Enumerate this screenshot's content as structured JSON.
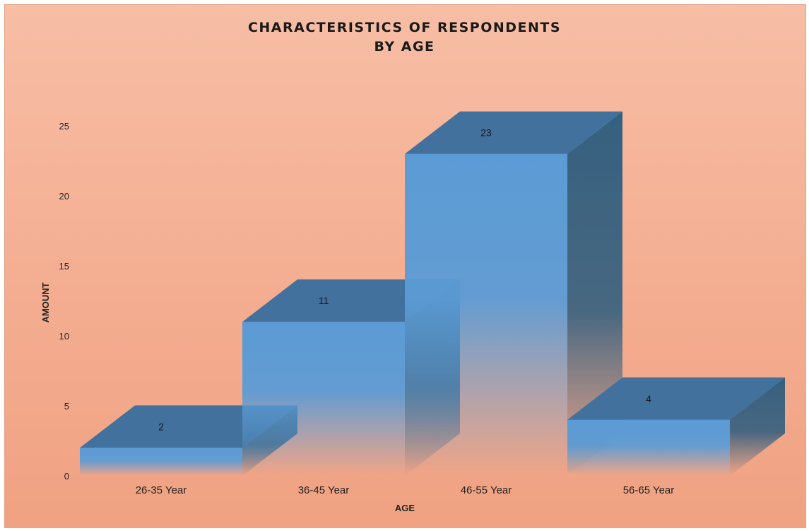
{
  "chart_data": {
    "type": "bar",
    "title": "CHARACTERISTICS OF RESPONDENTS",
    "subtitle": "BY AGE",
    "xlabel": "AGE",
    "ylabel": "AMOUNT",
    "categories": [
      "26-35 Year",
      "36-45 Year",
      "46-55 Year",
      "56-65 Year"
    ],
    "values": [
      2,
      11,
      23,
      4
    ],
    "ylim": [
      0,
      25
    ],
    "yticks": [
      0,
      5,
      10,
      15,
      20,
      25
    ],
    "grid": false,
    "legend": "none",
    "style": "3d-column",
    "colors": {
      "front": "#5b9bd5",
      "top": "#41719c",
      "side": "#35607f",
      "background": "#f5b49a"
    }
  }
}
